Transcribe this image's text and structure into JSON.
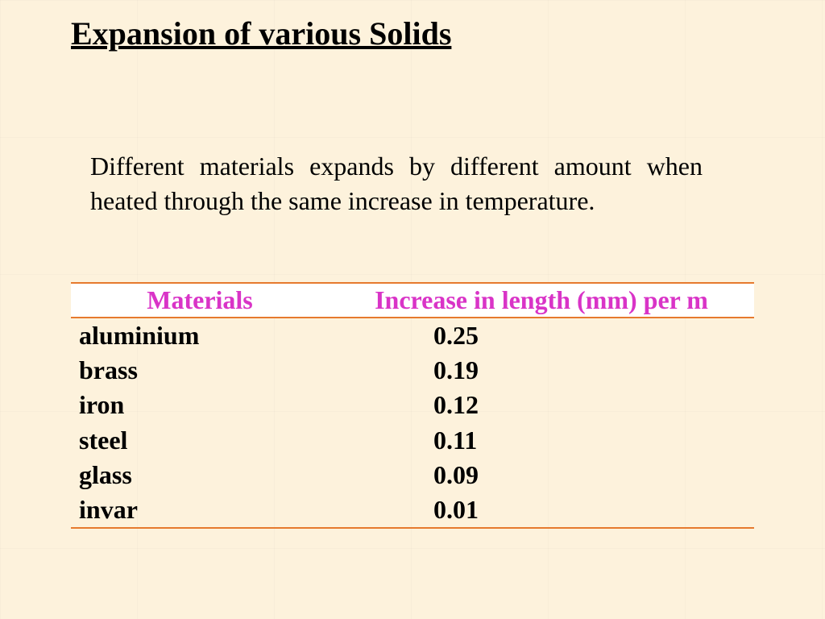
{
  "title": "Expansion of various Solids",
  "intro": "Different materials expands by different amount when heated through the same increase in temperature.",
  "table": {
    "type": "table",
    "header_color": "#d934c7",
    "header_bg": "#ffffff",
    "rule_color": "#e67a2e",
    "body_color": "#000000",
    "font_family": "Times New Roman",
    "header_fontsize": 32,
    "body_fontsize": 32,
    "columns": [
      "Materials",
      "Increase in length (mm) per m"
    ],
    "rows": [
      {
        "material": "aluminium",
        "value": "0.25"
      },
      {
        "material": "brass",
        "value": "0.19"
      },
      {
        "material": "iron",
        "value": "0.12"
      },
      {
        "material": "steel",
        "value": "0.11"
      },
      {
        "material": "glass",
        "value": "0.09"
      },
      {
        "material": "invar",
        "value": "0.01"
      }
    ]
  },
  "background_color": "#fdf2dc"
}
